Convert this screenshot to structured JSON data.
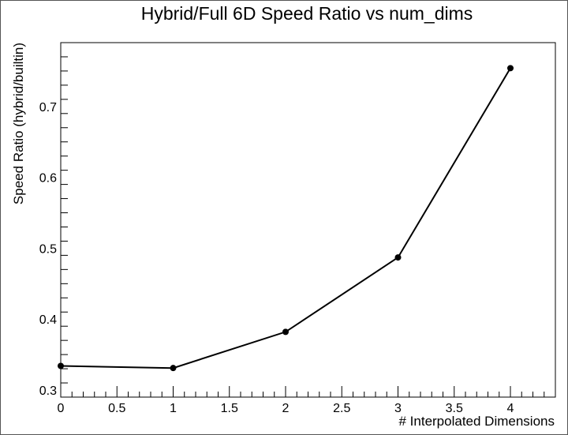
{
  "chart_data": {
    "type": "line",
    "title": "Hybrid/Full 6D Speed Ratio vs num_dims",
    "xlabel": "# Interpolated Dimensions",
    "ylabel": "Speed Ratio (hybrid/builtin)",
    "x": [
      0,
      1,
      2,
      3,
      4
    ],
    "values": [
      0.334,
      0.331,
      0.382,
      0.487,
      0.754
    ],
    "xlim": [
      0,
      4.4
    ],
    "ylim": [
      0.29,
      0.79
    ],
    "x_ticks": [
      "0",
      "0.5",
      "1",
      "1.5",
      "2",
      "2.5",
      "3",
      "3.5",
      "4"
    ],
    "y_ticks": [
      "0.3",
      "0.4",
      "0.5",
      "0.6",
      "0.7"
    ],
    "grid": false,
    "line_color": "#000000",
    "marker_color": "#000000"
  }
}
